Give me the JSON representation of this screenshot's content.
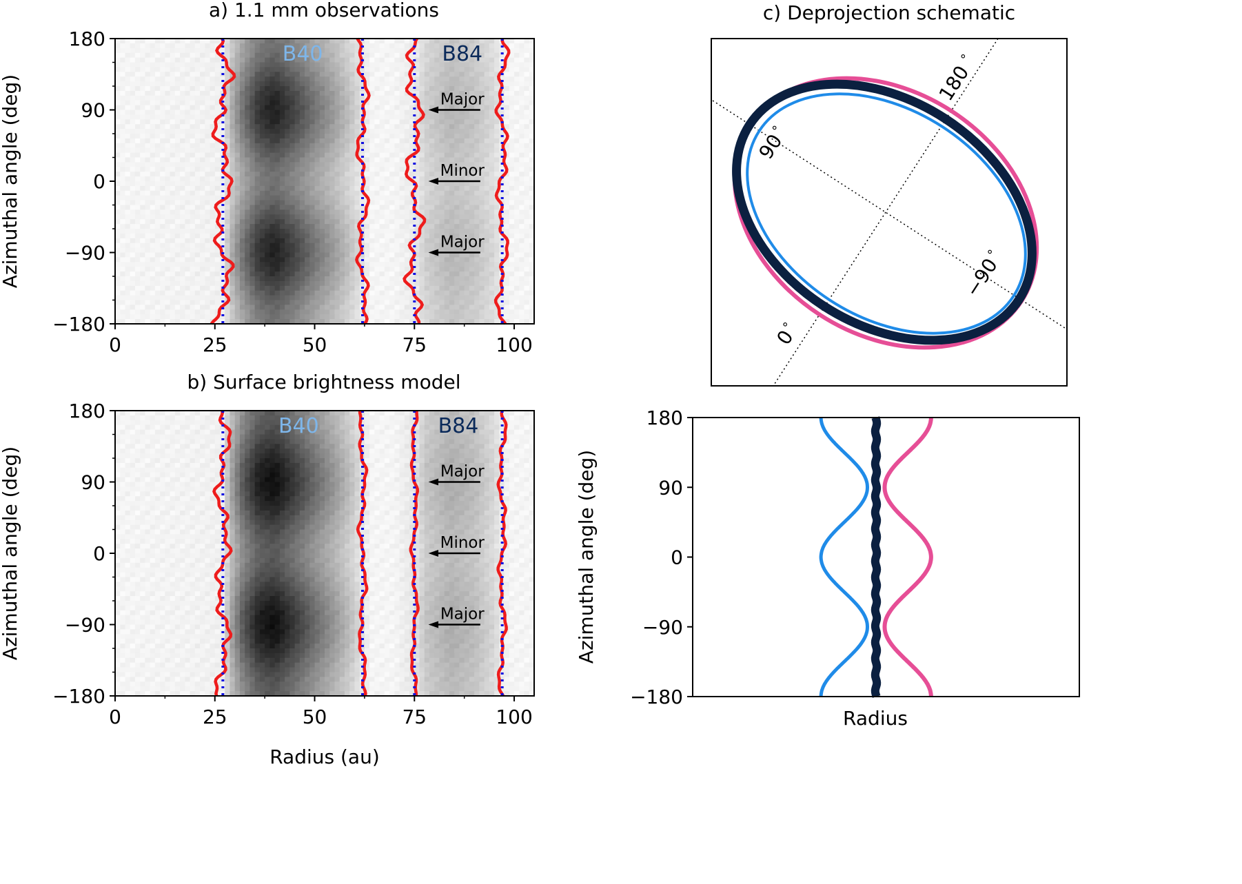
{
  "chart_data": [
    {
      "id": "a",
      "type": "heatmap",
      "title": "a) 1.1 mm observations",
      "xlabel": "",
      "ylabel": "Azimuthal angle (deg)",
      "xlim": [
        0,
        105
      ],
      "ylim": [
        -180,
        180
      ],
      "xticks": [
        "0",
        "25",
        "50",
        "75",
        "100"
      ],
      "yticks": [
        "180",
        "90",
        "0",
        "−90",
        "−180"
      ],
      "colormap": "gray-reversed",
      "ring_labels": [
        {
          "text": "B40",
          "r": 47,
          "color": "#7eb6ea"
        },
        {
          "text": "B84",
          "r": 87,
          "color": "#0b2a5a"
        }
      ],
      "arrow_annotations": [
        {
          "text": "Major",
          "az": 90
        },
        {
          "text": "Minor",
          "az": 0
        },
        {
          "text": "Major",
          "az": -90
        }
      ],
      "boundary_ref_radii": [
        27,
        62,
        75,
        97
      ],
      "edge_traces": [
        {
          "ref": 27,
          "amp": 1.5,
          "seed": 1.3
        },
        {
          "ref": 62,
          "amp": 0.9,
          "seed": 2.7
        },
        {
          "ref": 75,
          "amp": 1.4,
          "seed": 4.1
        },
        {
          "ref": 97,
          "amp": 0.9,
          "seed": 5.9
        }
      ],
      "intensity_profile": [
        [
          0,
          0.04
        ],
        [
          20,
          0.05
        ],
        [
          27,
          0.06
        ],
        [
          29,
          0.25
        ],
        [
          32,
          0.45
        ],
        [
          36,
          0.65
        ],
        [
          40,
          0.72
        ],
        [
          45,
          0.6
        ],
        [
          50,
          0.45
        ],
        [
          55,
          0.32
        ],
        [
          59,
          0.2
        ],
        [
          62,
          0.1
        ],
        [
          64,
          0.04
        ],
        [
          70,
          0.04
        ],
        [
          75,
          0.08
        ],
        [
          78,
          0.18
        ],
        [
          84,
          0.26
        ],
        [
          90,
          0.22
        ],
        [
          95,
          0.14
        ],
        [
          97,
          0.07
        ],
        [
          99,
          0.04
        ],
        [
          105,
          0.04
        ]
      ],
      "az_modulation": 0.22
    },
    {
      "id": "b",
      "type": "heatmap",
      "title": "b) Surface brightness model",
      "xlabel": "Radius (au)",
      "ylabel": "Azimuthal angle (deg)",
      "xlim": [
        0,
        105
      ],
      "ylim": [
        -180,
        180
      ],
      "xticks": [
        "0",
        "25",
        "50",
        "75",
        "100"
      ],
      "yticks": [
        "180",
        "90",
        "0",
        "−90",
        "−180"
      ],
      "colormap": "gray-reversed",
      "ring_labels": [
        {
          "text": "B40",
          "r": 46,
          "color": "#7eb6ea"
        },
        {
          "text": "B84",
          "r": 86,
          "color": "#0b2a5a"
        }
      ],
      "arrow_annotations": [
        {
          "text": "Major",
          "az": 90
        },
        {
          "text": "Minor",
          "az": 0
        },
        {
          "text": "Major",
          "az": -90
        }
      ],
      "boundary_ref_radii": [
        27,
        62,
        75,
        97
      ],
      "edge_traces": [
        {
          "ref": 27,
          "amp": 1.2,
          "seed": 0.7
        },
        {
          "ref": 62,
          "amp": 0.6,
          "seed": 3.3
        },
        {
          "ref": 75,
          "amp": 0.5,
          "seed": 4.8
        },
        {
          "ref": 97,
          "amp": 0.6,
          "seed": 6.2
        }
      ],
      "intensity_profile": [
        [
          0,
          0.04
        ],
        [
          20,
          0.05
        ],
        [
          27,
          0.06
        ],
        [
          29,
          0.3
        ],
        [
          32,
          0.55
        ],
        [
          36,
          0.75
        ],
        [
          40,
          0.8
        ],
        [
          45,
          0.66
        ],
        [
          50,
          0.5
        ],
        [
          55,
          0.35
        ],
        [
          59,
          0.22
        ],
        [
          62,
          0.1
        ],
        [
          64,
          0.04
        ],
        [
          70,
          0.04
        ],
        [
          75,
          0.1
        ],
        [
          78,
          0.22
        ],
        [
          84,
          0.3
        ],
        [
          90,
          0.25
        ],
        [
          95,
          0.15
        ],
        [
          97,
          0.07
        ],
        [
          99,
          0.04
        ],
        [
          105,
          0.04
        ]
      ],
      "az_modulation": 0.18
    },
    {
      "id": "c",
      "type": "diagram",
      "title": "c) Deprojection schematic",
      "axis_labels": [
        "90$^\\circ$",
        "180$^\\circ$",
        "−90$^\\circ$",
        "0$^\\circ$"
      ],
      "axis_label_text": [
        "90",
        "180",
        "−90",
        "0"
      ],
      "ellipses": [
        {
          "name": "outer",
          "color": "#e64e96"
        },
        {
          "name": "middle",
          "color": "#0b2040"
        },
        {
          "name": "inner",
          "color": "#1f8be8"
        }
      ]
    },
    {
      "id": "d",
      "type": "line",
      "xlabel": "Radius",
      "ylabel": "Azimuthal angle (deg)",
      "ylim": [
        -180,
        180
      ],
      "yticks": [
        "180",
        "90",
        "0",
        "−90",
        "−180"
      ],
      "series": [
        {
          "color": "#0b2040",
          "center": 0.0,
          "amp": 0.0
        },
        {
          "color": "#1f8be8",
          "center": -0.5,
          "amp": -0.5
        },
        {
          "color": "#e64e96",
          "center": 0.5,
          "amp": 0.5
        }
      ]
    }
  ]
}
